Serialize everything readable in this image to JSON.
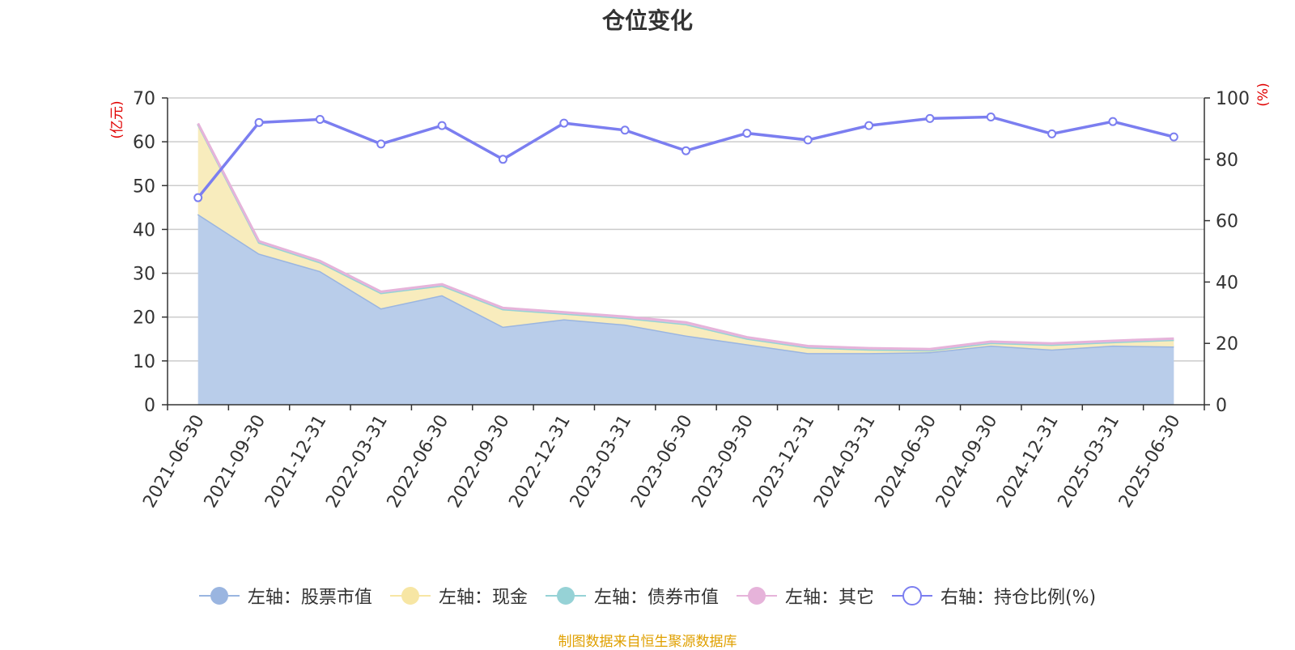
{
  "title": "仓位变化",
  "source": "制图数据来自恒生聚源数据库",
  "chart_data": {
    "type": "area",
    "categories": [
      "2021-06-30",
      "2021-09-30",
      "2021-12-31",
      "2022-03-31",
      "2022-06-30",
      "2022-09-30",
      "2022-12-31",
      "2023-03-31",
      "2023-06-30",
      "2023-09-30",
      "2023-12-31",
      "2024-03-31",
      "2024-06-30",
      "2024-09-30",
      "2024-12-31",
      "2025-03-31",
      "2025-06-30"
    ],
    "left_axis": {
      "unit": "(亿元)",
      "ylim": [
        0,
        70
      ],
      "ticks": [
        0,
        10,
        20,
        30,
        40,
        50,
        60,
        70
      ]
    },
    "right_axis": {
      "unit": "(%)",
      "ylim": [
        0,
        100
      ],
      "ticks": [
        0,
        20,
        40,
        60,
        80,
        100
      ]
    },
    "stacked": true,
    "grid": true,
    "legend_position": "bottom",
    "series": [
      {
        "name": "左轴：股票市值",
        "axis": "left",
        "color": "#9ab5e0",
        "fill": "#b9cdea",
        "values": [
          43.5,
          34.5,
          30.5,
          22.0,
          25.0,
          17.8,
          19.5,
          18.3,
          15.8,
          13.8,
          11.8,
          11.8,
          12.0,
          13.5,
          12.6,
          13.5,
          13.3
        ]
      },
      {
        "name": "左轴：现金",
        "axis": "left",
        "color": "#f7e6a4",
        "fill": "#f8ecbd",
        "values": [
          20.5,
          2.5,
          2.0,
          3.5,
          2.2,
          4.0,
          1.3,
          1.5,
          2.6,
          1.3,
          1.3,
          0.8,
          0.4,
          0.6,
          1.1,
          0.8,
          1.5
        ]
      },
      {
        "name": "左轴：债券市值",
        "axis": "left",
        "color": "#96d2d6",
        "fill": "#b0dfe1",
        "values": [
          0,
          0,
          0,
          0,
          0,
          0,
          0,
          0,
          0,
          0,
          0,
          0,
          0,
          0,
          0,
          0,
          0
        ]
      },
      {
        "name": "左轴：其它",
        "axis": "left",
        "color": "#e6b3da",
        "fill": "#eac3e2",
        "values": [
          0.2,
          0.3,
          0.3,
          0.3,
          0.3,
          0.3,
          0.3,
          0.3,
          0.4,
          0.3,
          0.3,
          0.3,
          0.3,
          0.3,
          0.3,
          0.3,
          0.3
        ]
      },
      {
        "name": "右轴：持仓比例(%)",
        "axis": "right",
        "type": "line",
        "color": "#7b7ef0",
        "values": [
          67.5,
          92.0,
          93.0,
          85.0,
          91.0,
          80.0,
          91.8,
          89.5,
          82.8,
          88.5,
          86.3,
          91.0,
          93.3,
          93.8,
          88.3,
          92.3,
          87.3
        ]
      }
    ]
  }
}
